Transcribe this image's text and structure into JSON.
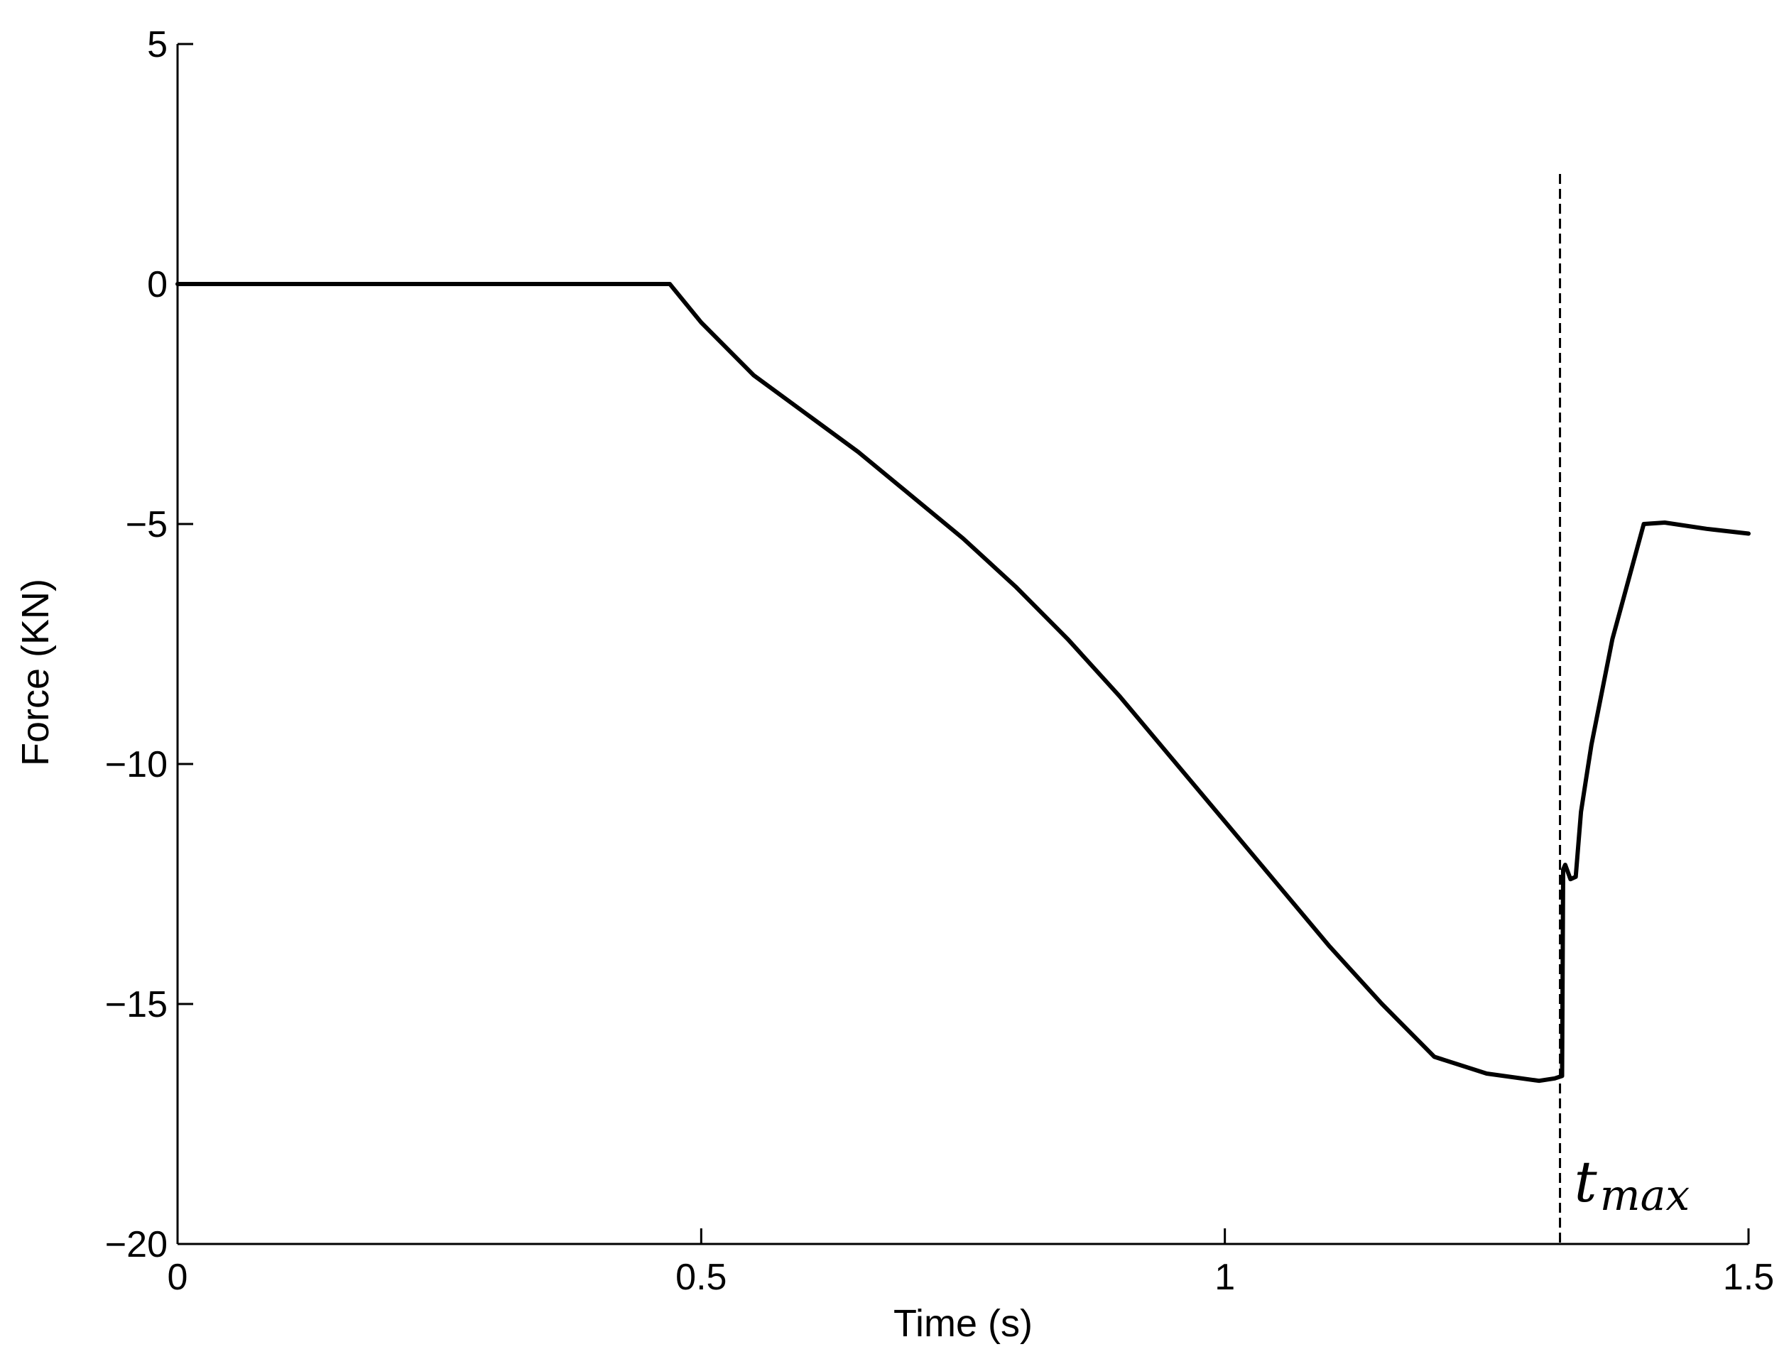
{
  "chart_data": {
    "type": "line",
    "xlabel": "Time (s)",
    "ylabel": "Force (KN)",
    "xlim": [
      0,
      1.5
    ],
    "ylim": [
      -20,
      5
    ],
    "xticks": [
      0,
      0.5,
      1,
      1.5
    ],
    "xtick_labels": [
      "0",
      "0.5",
      "1",
      "1.5"
    ],
    "yticks": [
      5,
      0,
      -5,
      -10,
      -15,
      -20
    ],
    "ytick_labels": [
      "5",
      "0",
      "−5",
      "−10",
      "−15",
      "−20"
    ],
    "grid": false,
    "line_color": "#000000",
    "series": [
      {
        "x": [
          0,
          0.1,
          0.2,
          0.3,
          0.4,
          0.47,
          0.5,
          0.55,
          0.6,
          0.65,
          0.7,
          0.75,
          0.8,
          0.85,
          0.9,
          0.95,
          1.0,
          1.05,
          1.1,
          1.15,
          1.2,
          1.25,
          1.3,
          1.315,
          1.322,
          1.323,
          1.325,
          1.33,
          1.335,
          1.34,
          1.345,
          1.35,
          1.37,
          1.4,
          1.42,
          1.46,
          1.5
        ],
        "y": [
          0,
          0,
          0,
          0,
          0,
          0,
          -0.8,
          -1.9,
          -2.7,
          -3.5,
          -4.4,
          -5.3,
          -6.3,
          -7.4,
          -8.6,
          -9.9,
          -11.2,
          -12.5,
          -13.8,
          -15.0,
          -16.1,
          -16.45,
          -16.6,
          -16.55,
          -16.5,
          -12.2,
          -12.1,
          -12.4,
          -12.35,
          -11.0,
          -10.3,
          -9.6,
          -7.4,
          -5.0,
          -4.97,
          -5.1,
          -5.2
        ]
      }
    ],
    "annotations": [
      {
        "type": "vline",
        "x": 1.32,
        "style": "dashed",
        "label_main": "t",
        "label_sub": "max"
      }
    ]
  }
}
